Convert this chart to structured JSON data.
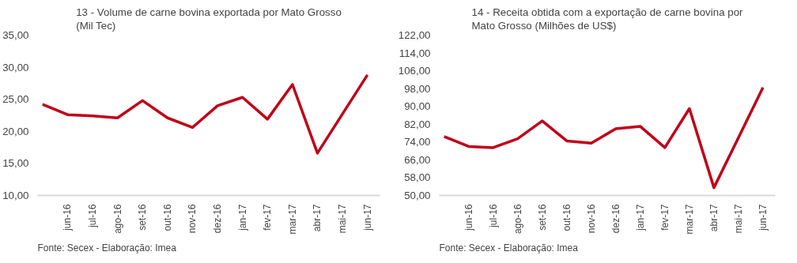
{
  "chart_data": [
    {
      "type": "line",
      "title": "13 - Volume de carne bovina exportada por Mato Grosso\n(Mil Tec)",
      "categories": [
        null,
        "jun-16",
        "jul-16",
        "ago-16",
        "set-16",
        "out-16",
        "nov-16",
        "dez-16",
        "jan-17",
        "fev-17",
        "mar-17",
        "abr-17",
        "mai-17",
        "jun-17"
      ],
      "series": [
        {
          "color": "#c00018",
          "values": [
            24.2,
            22.6,
            22.4,
            22.1,
            24.8,
            22.1,
            20.6,
            24.0,
            25.3,
            21.9,
            27.3,
            16.6,
            22.7,
            28.8
          ]
        }
      ],
      "ylim": [
        10,
        35
      ],
      "yticks": [
        {
          "value": 10,
          "label": "10,00"
        },
        {
          "value": 15,
          "label": "15,00"
        },
        {
          "value": 20,
          "label": "20,00"
        },
        {
          "value": 25,
          "label": "25,00"
        },
        {
          "value": 30,
          "label": "30,00"
        },
        {
          "value": 35,
          "label": "35,00"
        }
      ],
      "grid": false,
      "marker": "none",
      "line_style": "solid",
      "annotations": [
        "Fonte: Secex - Elaboração: Imea"
      ]
    },
    {
      "type": "line",
      "title": "14 - Receita obtida com a exportação de carne bovina por\nMato Grosso (Milhões de US$)",
      "categories": [
        null,
        "jun-16",
        "jul-16",
        "ago-16",
        "set-16",
        "out-16",
        "nov-16",
        "dez-16",
        "jan-17",
        "fev-17",
        "mar-17",
        "abr-17",
        "mai-17",
        "jun-17"
      ],
      "series": [
        {
          "color": "#c00018",
          "values": [
            76.5,
            72,
            71.5,
            75.5,
            83.5,
            74.5,
            73.5,
            80,
            81,
            71.5,
            89,
            53.5,
            76,
            98.5
          ]
        }
      ],
      "ylim": [
        50,
        122
      ],
      "yticks": [
        {
          "value": 50,
          "label": "50,00"
        },
        {
          "value": 58,
          "label": "58,00"
        },
        {
          "value": 66,
          "label": "66,00"
        },
        {
          "value": 74,
          "label": "74,00"
        },
        {
          "value": 82,
          "label": "82,00"
        },
        {
          "value": 90,
          "label": "90,00"
        },
        {
          "value": 98,
          "label": "98,00"
        },
        {
          "value": 106,
          "label": "106,00"
        },
        {
          "value": 114,
          "label": "114,00"
        },
        {
          "value": 122,
          "label": "122,00"
        }
      ],
      "grid": false,
      "marker": "none",
      "line_style": "solid",
      "annotations": [
        "Fonte: Secex - Elaboração: Imea"
      ]
    }
  ]
}
